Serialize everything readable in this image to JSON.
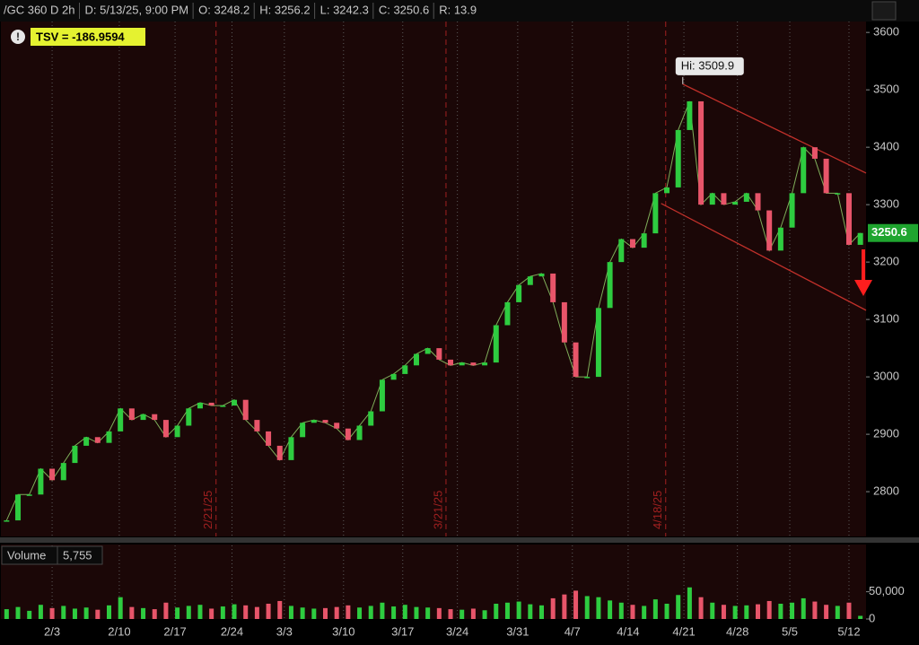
{
  "chart_data": [
    {
      "type": "line",
      "info": [
        "/GC 360 D 2h",
        "D: 5/13/25, 9:00 PM",
        "O: 3248.2",
        "H: 3256.2",
        "L: 3242.3",
        "C: 3250.6",
        "R: 13.9"
      ],
      "indicator_label": "TSV = -186.9594",
      "x": [
        0,
        1,
        2,
        3,
        4,
        5,
        6,
        7,
        8,
        9,
        10,
        11,
        12,
        13,
        14,
        15,
        16,
        17,
        18,
        19,
        20,
        21,
        22,
        23,
        24,
        25,
        26,
        27,
        28,
        29,
        30,
        31,
        32,
        33,
        34,
        35,
        36,
        37,
        38,
        39,
        40,
        41,
        42,
        43,
        44,
        45,
        46,
        47,
        48,
        49,
        50,
        51,
        52,
        53,
        54,
        55,
        56,
        57,
        58,
        59,
        60,
        61,
        62,
        63,
        64,
        65,
        66,
        67,
        68,
        69,
        70,
        71,
        72,
        73,
        74,
        75
      ],
      "values": [
        2750,
        2795,
        2795,
        2840,
        2820,
        2850,
        2880,
        2895,
        2885,
        2905,
        2945,
        2925,
        2935,
        2925,
        2895,
        2915,
        2945,
        2955,
        2950,
        2950,
        2960,
        2925,
        2905,
        2880,
        2855,
        2895,
        2920,
        2925,
        2920,
        2910,
        2890,
        2915,
        2940,
        2995,
        3005,
        3020,
        3040,
        3050,
        3030,
        3020,
        3025,
        3020,
        3025,
        3090,
        3130,
        3160,
        3175,
        3180,
        3130,
        3060,
        3000,
        3000,
        3120,
        3200,
        3240,
        3225,
        3250,
        3320,
        3330,
        3430,
        3480,
        3300,
        3320,
        3300,
        3305,
        3320,
        3290,
        3220,
        3260,
        3320,
        3400,
        3380,
        3320,
        3320,
        3230,
        3250.6
      ],
      "up_color": "#2ecc40",
      "down_color": "#e8556a",
      "xlim": [
        -0.5,
        75.5
      ],
      "ylim": [
        2722,
        3619
      ],
      "xticks": [
        {
          "value": 4.0,
          "label": "2/3"
        },
        {
          "value": 9.9,
          "label": "2/10"
        },
        {
          "value": 14.8,
          "label": "2/17"
        },
        {
          "value": 19.8,
          "label": "2/24"
        },
        {
          "value": 24.4,
          "label": "3/3"
        },
        {
          "value": 29.6,
          "label": "3/10"
        },
        {
          "value": 34.8,
          "label": "3/17"
        },
        {
          "value": 39.6,
          "label": "3/24"
        },
        {
          "value": 44.9,
          "label": "3/31"
        },
        {
          "value": 49.7,
          "label": "4/7"
        },
        {
          "value": 54.6,
          "label": "4/14"
        },
        {
          "value": 59.5,
          "label": "4/21"
        },
        {
          "value": 64.2,
          "label": "4/28"
        },
        {
          "value": 68.8,
          "label": "5/5"
        },
        {
          "value": 74.0,
          "label": "5/12"
        }
      ],
      "yticks": [
        2800,
        2900,
        3000,
        3100,
        3200,
        3300,
        3400,
        3500,
        3600
      ],
      "grid": "x",
      "markers": [
        {
          "value": 18.4,
          "label": "2/21/25"
        },
        {
          "value": 38.6,
          "label": "3/21/25"
        },
        {
          "value": 57.9,
          "label": "4/18/25"
        }
      ],
      "marker_color": "#a02020",
      "annotation": {
        "label": "Hi: 3509.9",
        "x": 59.4,
        "y": 3509.9
      },
      "trendlines": [
        {
          "x": [
            59.4,
            75.5
          ],
          "y": [
            3509.9,
            3355
          ]
        },
        {
          "x": [
            57.5,
            75.5
          ],
          "y": [
            3302,
            3116
          ]
        }
      ],
      "trendline_color": "#c0302a",
      "last_price": 3250.6,
      "last_price_color": "#1fa52f"
    },
    {
      "type": "bar",
      "title": "Volume",
      "current": {
        "value": 5755,
        "label": "5,755"
      },
      "x": [
        0,
        1,
        2,
        3,
        4,
        5,
        6,
        7,
        8,
        9,
        10,
        11,
        12,
        13,
        14,
        15,
        16,
        17,
        18,
        19,
        20,
        21,
        22,
        23,
        24,
        25,
        26,
        27,
        28,
        29,
        30,
        31,
        32,
        33,
        34,
        35,
        36,
        37,
        38,
        39,
        40,
        41,
        42,
        43,
        44,
        45,
        46,
        47,
        48,
        49,
        50,
        51,
        52,
        53,
        54,
        55,
        56,
        57,
        58,
        59,
        60,
        61,
        62,
        63,
        64,
        65,
        66,
        67,
        68,
        69,
        70,
        71,
        72,
        73,
        74,
        75
      ],
      "values": [
        18000,
        22000,
        15000,
        26000,
        20000,
        24000,
        19000,
        21000,
        17000,
        25000,
        40000,
        22000,
        20000,
        18000,
        30000,
        21000,
        24000,
        26000,
        19000,
        23000,
        27000,
        25000,
        22000,
        28000,
        33000,
        24000,
        21000,
        19000,
        20000,
        22000,
        25000,
        21000,
        24000,
        30000,
        23000,
        26000,
        22000,
        21000,
        20000,
        18000,
        17000,
        19000,
        16000,
        28000,
        30000,
        32000,
        27000,
        25000,
        38000,
        45000,
        52000,
        42000,
        40000,
        34000,
        30000,
        26000,
        24000,
        36000,
        28000,
        44000,
        58000,
        40000,
        30000,
        26000,
        24000,
        25000,
        27000,
        33000,
        28000,
        30000,
        38000,
        32000,
        26000,
        24000,
        30000,
        5755
      ],
      "xlim": [
        -0.5,
        75.5
      ],
      "ylim": [
        0,
        135000
      ],
      "yticks": [
        {
          "value": 50000,
          "label": "50,000"
        },
        0
      ]
    }
  ]
}
